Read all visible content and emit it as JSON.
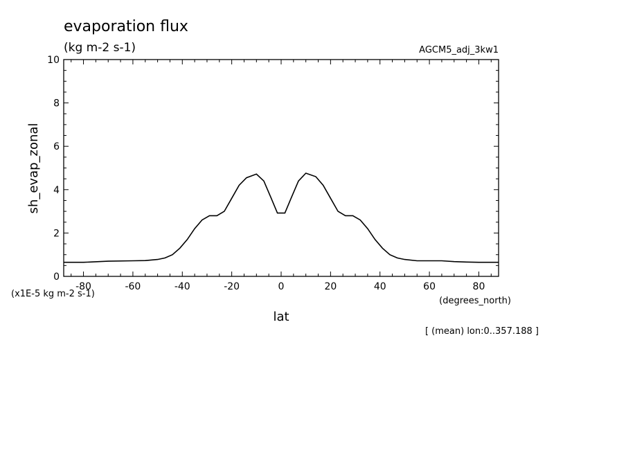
{
  "chart_data": {
    "type": "line",
    "title": "evaporation flux",
    "subtitle": "(kg m-2 s-1)",
    "run_label": "AGCM5_adj_3kw1",
    "xlabel": "lat",
    "x_units": "(degrees_north)",
    "ylabel": "sh_evap_zonal",
    "y_scale_note": "(x1E-5 kg m-2 s-1)",
    "footnote": "[ (mean) lon:0..357.188 ]",
    "xlim": [
      -88,
      88
    ],
    "ylim": [
      0,
      10
    ],
    "xticks": [
      -80,
      -60,
      -40,
      -20,
      0,
      20,
      40,
      60,
      80
    ],
    "xtick_labels": [
      "-80",
      "-60",
      "-40",
      "-20",
      "0",
      "20",
      "40",
      "60",
      "80"
    ],
    "yticks": [
      0,
      2,
      4,
      6,
      8,
      10
    ],
    "ytick_labels": [
      "0",
      "2",
      "4",
      "6",
      "8",
      "10"
    ],
    "grid": false,
    "line_color": "#000000",
    "series": [
      {
        "x": [
          -88,
          -80,
          -70,
          -60,
          -55,
          -50,
          -47,
          -44,
          -41,
          -38,
          -35,
          -32,
          -29,
          -26,
          -23,
          -20,
          -17,
          -14,
          -10,
          -7,
          -4,
          -1.5,
          1.5,
          4,
          7,
          10,
          14,
          17,
          20,
          23,
          26,
          29,
          32,
          35,
          38,
          41,
          44,
          47,
          50,
          55,
          60,
          65,
          70,
          75,
          80,
          88
        ],
        "y": [
          0.65,
          0.65,
          0.7,
          0.72,
          0.73,
          0.78,
          0.85,
          1.0,
          1.3,
          1.7,
          2.2,
          2.6,
          2.8,
          2.8,
          3.0,
          3.6,
          4.2,
          4.55,
          4.72,
          4.4,
          3.6,
          2.92,
          2.92,
          3.6,
          4.4,
          4.76,
          4.6,
          4.2,
          3.6,
          3.0,
          2.8,
          2.8,
          2.6,
          2.2,
          1.7,
          1.3,
          1.0,
          0.85,
          0.78,
          0.72,
          0.72,
          0.72,
          0.68,
          0.66,
          0.65,
          0.65
        ]
      }
    ]
  }
}
